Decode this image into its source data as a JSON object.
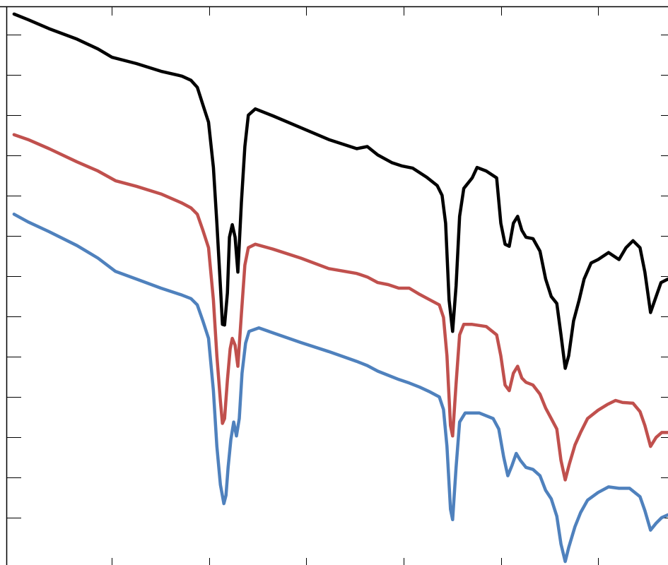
{
  "chart_data": {
    "type": "line",
    "title": "",
    "xlabel": "",
    "ylabel": "",
    "xlim": [
      0,
      945
    ],
    "ylim": [
      0,
      800
    ],
    "grid": false,
    "legend": "none",
    "x_ticks": [
      150,
      289,
      428,
      567,
      706,
      845
    ],
    "y_ticks": [
      67,
      124,
      181,
      238,
      295,
      352,
      409,
      466,
      523,
      580,
      637,
      694,
      751
    ],
    "series": [
      {
        "color": "#000000",
        "points": [
          [
            10,
            790
          ],
          [
            30,
            782
          ],
          [
            60,
            769
          ],
          [
            100,
            754
          ],
          [
            130,
            740
          ],
          [
            150,
            728
          ],
          [
            185,
            719
          ],
          [
            220,
            708
          ],
          [
            250,
            701
          ],
          [
            263,
            695
          ],
          [
            272,
            685
          ],
          [
            280,
            660
          ],
          [
            288,
            635
          ],
          [
            295,
            570
          ],
          [
            300,
            490
          ],
          [
            305,
            400
          ],
          [
            308,
            345
          ],
          [
            311,
            344
          ],
          [
            315,
            390
          ],
          [
            318,
            470
          ],
          [
            322,
            488
          ],
          [
            326,
            470
          ],
          [
            330,
            420
          ],
          [
            335,
            520
          ],
          [
            340,
            600
          ],
          [
            345,
            645
          ],
          [
            355,
            654
          ],
          [
            380,
            644
          ],
          [
            420,
            627
          ],
          [
            460,
            610
          ],
          [
            500,
            597
          ],
          [
            515,
            600
          ],
          [
            530,
            588
          ],
          [
            550,
            577
          ],
          [
            565,
            572
          ],
          [
            580,
            569
          ],
          [
            600,
            556
          ],
          [
            615,
            544
          ],
          [
            622,
            530
          ],
          [
            627,
            490
          ],
          [
            632,
            380
          ],
          [
            637,
            335
          ],
          [
            642,
            400
          ],
          [
            647,
            500
          ],
          [
            653,
            540
          ],
          [
            665,
            555
          ],
          [
            672,
            570
          ],
          [
            685,
            565
          ],
          [
            700,
            555
          ],
          [
            706,
            490
          ],
          [
            712,
            460
          ],
          [
            718,
            457
          ],
          [
            724,
            490
          ],
          [
            730,
            500
          ],
          [
            736,
            480
          ],
          [
            742,
            470
          ],
          [
            752,
            468
          ],
          [
            762,
            450
          ],
          [
            770,
            410
          ],
          [
            778,
            385
          ],
          [
            786,
            375
          ],
          [
            792,
            330
          ],
          [
            798,
            282
          ],
          [
            803,
            300
          ],
          [
            810,
            350
          ],
          [
            818,
            380
          ],
          [
            825,
            410
          ],
          [
            835,
            433
          ],
          [
            845,
            438
          ],
          [
            860,
            448
          ],
          [
            875,
            438
          ],
          [
            885,
            455
          ],
          [
            895,
            465
          ],
          [
            905,
            455
          ],
          [
            912,
            420
          ],
          [
            920,
            362
          ],
          [
            928,
            385
          ],
          [
            935,
            405
          ],
          [
            945,
            410
          ]
        ]
      },
      {
        "color": "#c0504d",
        "points": [
          [
            10,
            617
          ],
          [
            30,
            610
          ],
          [
            60,
            597
          ],
          [
            100,
            578
          ],
          [
            130,
            565
          ],
          [
            155,
            551
          ],
          [
            185,
            543
          ],
          [
            220,
            532
          ],
          [
            250,
            519
          ],
          [
            263,
            512
          ],
          [
            272,
            503
          ],
          [
            280,
            480
          ],
          [
            288,
            455
          ],
          [
            295,
            380
          ],
          [
            300,
            300
          ],
          [
            305,
            235
          ],
          [
            308,
            203
          ],
          [
            311,
            210
          ],
          [
            315,
            265
          ],
          [
            319,
            310
          ],
          [
            322,
            325
          ],
          [
            326,
            315
          ],
          [
            330,
            285
          ],
          [
            335,
            360
          ],
          [
            340,
            430
          ],
          [
            345,
            455
          ],
          [
            355,
            460
          ],
          [
            380,
            453
          ],
          [
            420,
            440
          ],
          [
            460,
            425
          ],
          [
            500,
            418
          ],
          [
            515,
            413
          ],
          [
            530,
            405
          ],
          [
            545,
            402
          ],
          [
            560,
            397
          ],
          [
            575,
            397
          ],
          [
            590,
            388
          ],
          [
            605,
            380
          ],
          [
            618,
            373
          ],
          [
            624,
            355
          ],
          [
            629,
            300
          ],
          [
            634,
            200
          ],
          [
            637,
            185
          ],
          [
            642,
            260
          ],
          [
            647,
            330
          ],
          [
            653,
            345
          ],
          [
            665,
            345
          ],
          [
            685,
            342
          ],
          [
            700,
            330
          ],
          [
            706,
            300
          ],
          [
            712,
            258
          ],
          [
            718,
            250
          ],
          [
            724,
            275
          ],
          [
            730,
            285
          ],
          [
            736,
            268
          ],
          [
            742,
            262
          ],
          [
            752,
            258
          ],
          [
            762,
            245
          ],
          [
            770,
            225
          ],
          [
            778,
            210
          ],
          [
            786,
            195
          ],
          [
            792,
            150
          ],
          [
            798,
            122
          ],
          [
            804,
            145
          ],
          [
            812,
            172
          ],
          [
            820,
            190
          ],
          [
            830,
            210
          ],
          [
            845,
            222
          ],
          [
            858,
            230
          ],
          [
            870,
            236
          ],
          [
            880,
            233
          ],
          [
            895,
            232
          ],
          [
            905,
            220
          ],
          [
            912,
            200
          ],
          [
            920,
            170
          ],
          [
            928,
            183
          ],
          [
            936,
            190
          ],
          [
            945,
            190
          ]
        ]
      },
      {
        "color": "#4f81bd",
        "points": [
          [
            10,
            503
          ],
          [
            30,
            492
          ],
          [
            60,
            478
          ],
          [
            100,
            458
          ],
          [
            130,
            440
          ],
          [
            155,
            421
          ],
          [
            185,
            410
          ],
          [
            220,
            397
          ],
          [
            250,
            387
          ],
          [
            263,
            382
          ],
          [
            272,
            373
          ],
          [
            280,
            350
          ],
          [
            288,
            325
          ],
          [
            295,
            250
          ],
          [
            300,
            170
          ],
          [
            305,
            115
          ],
          [
            310,
            88
          ],
          [
            313,
            100
          ],
          [
            316,
            140
          ],
          [
            320,
            180
          ],
          [
            324,
            205
          ],
          [
            328,
            185
          ],
          [
            332,
            210
          ],
          [
            336,
            275
          ],
          [
            341,
            318
          ],
          [
            346,
            335
          ],
          [
            360,
            340
          ],
          [
            380,
            333
          ],
          [
            420,
            319
          ],
          [
            460,
            306
          ],
          [
            500,
            292
          ],
          [
            515,
            286
          ],
          [
            530,
            278
          ],
          [
            545,
            272
          ],
          [
            560,
            266
          ],
          [
            575,
            261
          ],
          [
            590,
            255
          ],
          [
            605,
            248
          ],
          [
            618,
            241
          ],
          [
            624,
            223
          ],
          [
            629,
            170
          ],
          [
            634,
            80
          ],
          [
            637,
            65
          ],
          [
            642,
            140
          ],
          [
            647,
            205
          ],
          [
            655,
            218
          ],
          [
            675,
            218
          ],
          [
            695,
            210
          ],
          [
            703,
            195
          ],
          [
            710,
            155
          ],
          [
            716,
            128
          ],
          [
            722,
            143
          ],
          [
            728,
            160
          ],
          [
            734,
            150
          ],
          [
            742,
            140
          ],
          [
            752,
            137
          ],
          [
            762,
            128
          ],
          [
            770,
            107
          ],
          [
            778,
            95
          ],
          [
            786,
            70
          ],
          [
            792,
            30
          ],
          [
            798,
            5
          ],
          [
            803,
            25
          ],
          [
            812,
            55
          ],
          [
            820,
            75
          ],
          [
            830,
            93
          ],
          [
            845,
            104
          ],
          [
            860,
            112
          ],
          [
            875,
            110
          ],
          [
            890,
            110
          ],
          [
            905,
            98
          ],
          [
            912,
            78
          ],
          [
            920,
            50
          ],
          [
            928,
            60
          ],
          [
            936,
            68
          ],
          [
            945,
            72
          ]
        ]
      }
    ]
  }
}
